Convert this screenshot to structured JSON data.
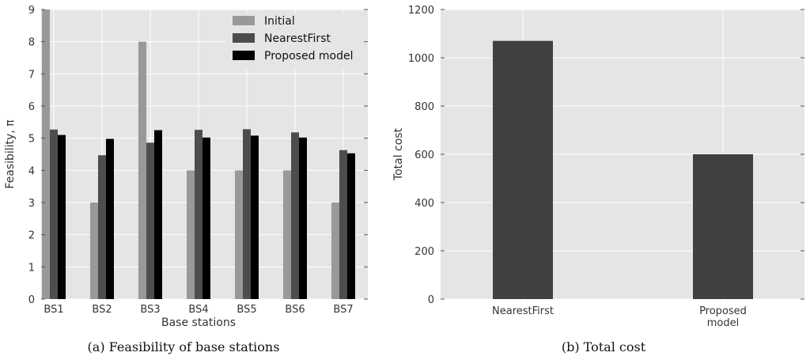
{
  "chart_data": [
    {
      "type": "bar",
      "caption": "(a)  Feasibility of base stations",
      "xlabel": "Base stations",
      "ylabel": "Feasibility, π",
      "ylim": [
        0,
        9
      ],
      "yticks": [
        "0",
        "1",
        "2",
        "3",
        "4",
        "5",
        "6",
        "7",
        "8",
        "9"
      ],
      "categories": [
        "BS1",
        "BS2",
        "BS3",
        "BS4",
        "BS5",
        "BS6",
        "BS7"
      ],
      "legend_position": "top-right",
      "grid": true,
      "series": [
        {
          "name": "Initial",
          "color": "#999999",
          "values": [
            9,
            3,
            8,
            4,
            4,
            4,
            3
          ]
        },
        {
          "name": "NearestFirst",
          "color": "#4d4d4d",
          "values": [
            5.27,
            4.47,
            4.86,
            5.26,
            5.28,
            5.18,
            4.63
          ]
        },
        {
          "name": "Proposed model",
          "color": "#000000",
          "values": [
            5.1,
            4.98,
            5.25,
            5.02,
            5.08,
            5.02,
            4.53
          ]
        }
      ]
    },
    {
      "type": "bar",
      "caption": "(b)  Total cost",
      "xlabel": "",
      "ylabel": "Total cost",
      "ylim": [
        0,
        1200
      ],
      "yticks": [
        "0",
        "200",
        "400",
        "600",
        "800",
        "1000",
        "1200"
      ],
      "categories": [
        [
          "NearestFirst"
        ],
        [
          "Proposed",
          "model"
        ]
      ],
      "grid": true,
      "bar_color": "#404040",
      "values": [
        1070,
        600
      ]
    }
  ]
}
